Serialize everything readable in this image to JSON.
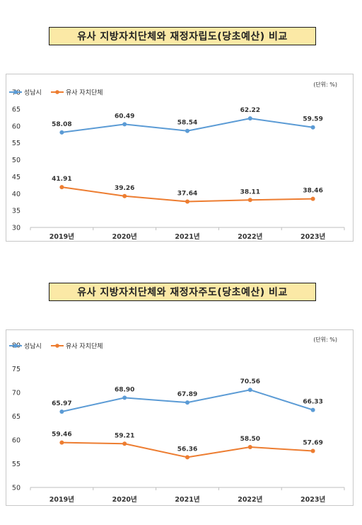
{
  "charts": [
    {
      "title": "유사 지방자치단체와 재정자립도(당초예산) 비교",
      "unit": "(단위: %)"
    },
    {
      "title": "유사 지방자치단체와 재정자주도(당초예산) 비교",
      "unit": "(단위: %)"
    }
  ],
  "colors": {
    "series_a": "#5b9bd5",
    "series_b": "#ed7d31",
    "axis_text": "#333333"
  },
  "chart_data": [
    {
      "type": "line",
      "categories": [
        "2019년",
        "2020년",
        "2021년",
        "2022년",
        "2023년"
      ],
      "series": [
        {
          "name": "성남시",
          "values": [
            58.08,
            60.49,
            58.54,
            62.22,
            59.59
          ],
          "labels": [
            "58.08",
            "60.49",
            "58.54",
            "62.22",
            "59.59"
          ]
        },
        {
          "name": "유사 자치단체",
          "values": [
            41.91,
            39.26,
            37.64,
            38.11,
            38.46
          ],
          "labels": [
            "41.91",
            "39.26",
            "37.64",
            "38.11",
            "38.46"
          ]
        }
      ],
      "ylim": [
        30,
        70
      ],
      "yticks": [
        30,
        35,
        40,
        45,
        50,
        55,
        60,
        65,
        70
      ],
      "grid": false,
      "legend": "top-left"
    },
    {
      "type": "line",
      "categories": [
        "2019년",
        "2020년",
        "2021년",
        "2022년",
        "2023년"
      ],
      "series": [
        {
          "name": "성남시",
          "values": [
            65.97,
            68.9,
            67.89,
            70.56,
            66.33
          ],
          "labels": [
            "65.97",
            "68.90",
            "67.89",
            "70.56",
            "66.33"
          ]
        },
        {
          "name": "유사 자치단체",
          "values": [
            59.46,
            59.21,
            56.36,
            58.5,
            57.69
          ],
          "labels": [
            "59.46",
            "59.21",
            "56.36",
            "58.50",
            "57.69"
          ]
        }
      ],
      "ylim": [
        50,
        80
      ],
      "yticks": [
        50,
        55,
        60,
        65,
        70,
        75,
        80
      ],
      "grid": false,
      "legend": "top-left"
    }
  ]
}
